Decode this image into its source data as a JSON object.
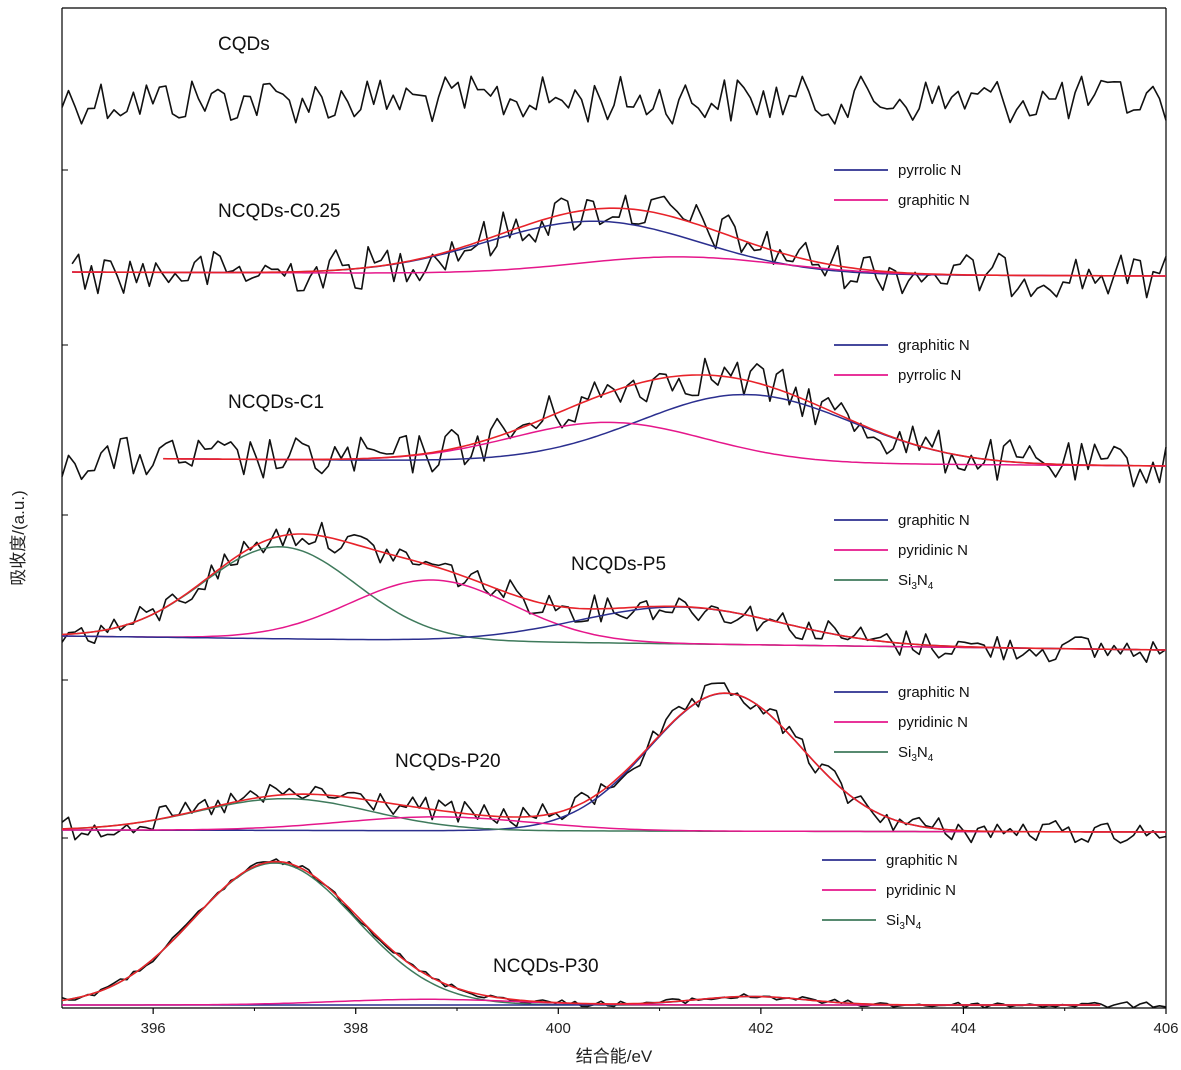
{
  "chart_data": {
    "type": "line",
    "xlabel": "结合能/eV",
    "ylabel": "吸收度/(a.u.)",
    "xlim": [
      395.1,
      406.0
    ],
    "xticks": [
      396,
      398,
      400,
      402,
      404,
      406
    ],
    "grid": false,
    "colors": {
      "data": "#111111",
      "fit": "#e8232a",
      "graphitic": "#2b2f8f",
      "pyrrolic": "#2b2f8f",
      "pyridinic": "#e5178b",
      "si3n4": "#3f7a5c"
    },
    "panels": [
      {
        "name": "CQDs",
        "noise": 24,
        "baseline": 0,
        "components": [],
        "legend": []
      },
      {
        "name": "NCQDs-C0.25",
        "noise": 22,
        "baseline": 0,
        "components": [
          {
            "key": "pyrrolic",
            "center": 400.35,
            "width": 1.05,
            "amplitude": 0.85
          },
          {
            "key": "pyridinic",
            "center": 401.2,
            "width": 1.0,
            "amplitude": 0.28
          }
        ],
        "legend": [
          {
            "key": "pyrrolic",
            "label": "pyrrolic N"
          },
          {
            "key": "pyridinic",
            "label": "graphitic N"
          }
        ]
      },
      {
        "name": "NCQDs-C1",
        "noise": 22,
        "baseline": 0,
        "components": [
          {
            "key": "graphitic",
            "center": 401.85,
            "width": 1.05,
            "amplitude": 0.95
          },
          {
            "key": "pyridinic",
            "center": 400.5,
            "width": 0.95,
            "amplitude": 0.55
          }
        ],
        "legend": [
          {
            "key": "graphitic",
            "label": "graphitic N"
          },
          {
            "key": "pyridinic",
            "label": "pyrrolic N"
          }
        ]
      },
      {
        "name": "NCQDs-P5",
        "noise": 14,
        "baseline": 0,
        "components": [
          {
            "key": "si3n4",
            "center": 397.25,
            "width": 0.75,
            "amplitude": 1.0
          },
          {
            "key": "pyridinic",
            "center": 398.75,
            "width": 0.8,
            "amplitude": 0.66
          },
          {
            "key": "graphitic",
            "center": 401.2,
            "width": 1.0,
            "amplitude": 0.4
          }
        ],
        "legend": [
          {
            "key": "graphitic",
            "label": "graphitic N"
          },
          {
            "key": "pyridinic",
            "label": "pyridinic N"
          },
          {
            "key": "si3n4",
            "label": "Si3N4"
          }
        ]
      },
      {
        "name": "NCQDs-P20",
        "noise": 12,
        "baseline": 0,
        "components": [
          {
            "key": "graphitic",
            "center": 401.65,
            "width": 0.75,
            "amplitude": 1.0
          },
          {
            "key": "si3n4",
            "center": 397.3,
            "width": 0.85,
            "amplitude": 0.23
          },
          {
            "key": "pyridinic",
            "center": 398.8,
            "width": 0.95,
            "amplitude": 0.1
          }
        ],
        "legend": [
          {
            "key": "graphitic",
            "label": "graphitic N"
          },
          {
            "key": "pyridinic",
            "label": "pyridinic N"
          },
          {
            "key": "si3n4",
            "label": "Si3N4"
          }
        ]
      },
      {
        "name": "NCQDs-P30",
        "noise": 3,
        "baseline": 0,
        "components": [
          {
            "key": "si3n4",
            "center": 397.2,
            "width": 0.8,
            "amplitude": 1.0
          },
          {
            "key": "graphitic",
            "center": 401.9,
            "width": 0.55,
            "amplitude": 0.06
          },
          {
            "key": "pyridinic",
            "center": 398.7,
            "width": 0.9,
            "amplitude": 0.04
          }
        ],
        "legend": [
          {
            "key": "graphitic",
            "label": "graphitic N"
          },
          {
            "key": "pyridinic",
            "label": "pyridinic N"
          },
          {
            "key": "si3n4",
            "label": "Si3N4"
          }
        ]
      }
    ]
  }
}
